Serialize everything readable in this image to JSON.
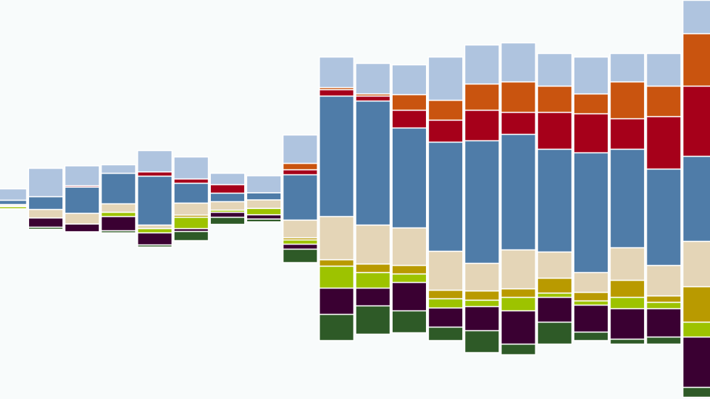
{
  "chart_data": {
    "type": "bar",
    "stacked": true,
    "centered": true,
    "series": [
      {
        "color": "#2e5a27",
        "values": [
          0,
          3,
          0,
          3,
          3,
          13,
          10,
          4,
          19,
          37,
          40,
          31,
          19,
          31,
          15,
          31,
          12,
          7,
          10,
          14
        ]
      },
      {
        "color": "#3a0032",
        "values": [
          0,
          13,
          11,
          20,
          17,
          4,
          7,
          6,
          7,
          37,
          25,
          40,
          27,
          34,
          47,
          35,
          38,
          43,
          40,
          71
        ]
      },
      {
        "color": "#9dc300",
        "values": [
          3,
          0,
          0,
          6,
          6,
          16,
          3,
          9,
          6,
          31,
          22,
          12,
          13,
          9,
          19,
          6,
          6,
          16,
          9,
          21
        ]
      },
      {
        "color": "#b99a00",
        "values": [
          1,
          0,
          0,
          0,
          0,
          3,
          0,
          0,
          3,
          9,
          12,
          12,
          12,
          13,
          12,
          21,
          12,
          24,
          9,
          50
        ]
      },
      {
        "color": "#e4d5b7",
        "values": [
          2,
          12,
          15,
          12,
          5,
          17,
          12,
          12,
          25,
          61,
          55,
          53,
          55,
          39,
          55,
          37,
          28,
          46,
          43,
          64
        ]
      },
      {
        "color": "#4f7ca8",
        "values": [
          6,
          18,
          37,
          43,
          69,
          28,
          12,
          10,
          64,
          170,
          175,
          141,
          154,
          173,
          163,
          145,
          169,
          139,
          136,
          120
        ]
      },
      {
        "color": "#a6001a",
        "values": [
          0,
          0,
          2,
          0,
          6,
          6,
          12,
          0,
          7,
          9,
          7,
          25,
          31,
          43,
          31,
          52,
          55,
          43,
          74,
          99
        ]
      },
      {
        "color": "#c9540f",
        "values": [
          0,
          0,
          0,
          0,
          0,
          0,
          0,
          0,
          9,
          3,
          3,
          22,
          28,
          37,
          43,
          37,
          28,
          52,
          43,
          74
        ]
      },
      {
        "color": "#afc4df",
        "values": [
          16,
          40,
          28,
          12,
          30,
          31,
          16,
          24,
          40,
          43,
          43,
          42,
          61,
          55,
          55,
          46,
          52,
          40,
          46,
          47
        ]
      }
    ]
  }
}
